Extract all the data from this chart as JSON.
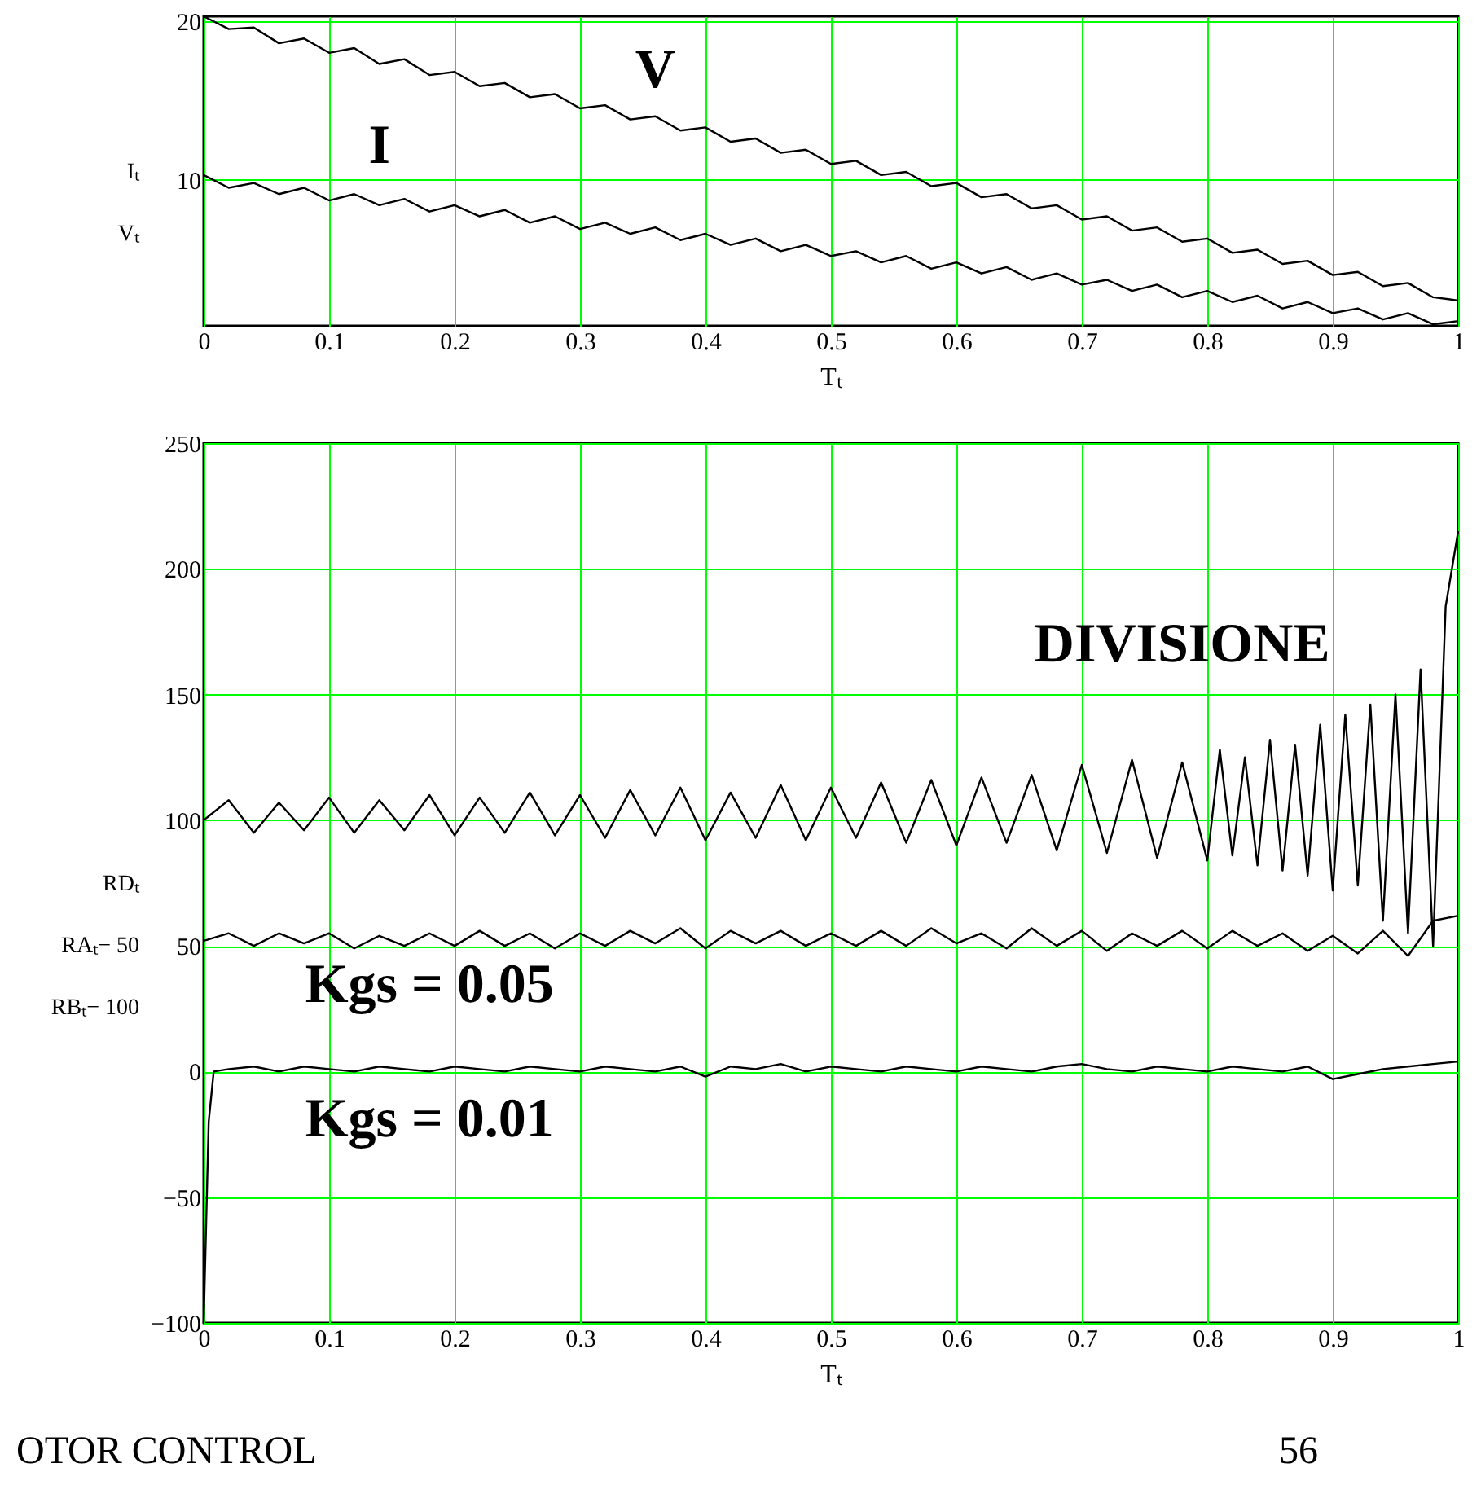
{
  "chart_data": [
    {
      "type": "line",
      "xlabel": "Tₜ",
      "ylabel": "Iₜ\nVₜ",
      "xlim": [
        0,
        1
      ],
      "ylim": [
        0.8,
        20.3
      ],
      "xticks": [
        0,
        0.1,
        0.2,
        0.3,
        0.4,
        0.5,
        0.6,
        0.7,
        0.8,
        0.9,
        1
      ],
      "yticks": [
        10,
        20
      ],
      "grid": true,
      "line_style": "solid",
      "series": [
        {
          "name": "V",
          "color": "#000000",
          "x": [
            0,
            0.02,
            0.04,
            0.06,
            0.08,
            0.1,
            0.12,
            0.14,
            0.16,
            0.18,
            0.2,
            0.22,
            0.24,
            0.26,
            0.28,
            0.3,
            0.32,
            0.34,
            0.36,
            0.38,
            0.4,
            0.42,
            0.44,
            0.46,
            0.48,
            0.5,
            0.52,
            0.54,
            0.56,
            0.58,
            0.6,
            0.62,
            0.64,
            0.66,
            0.68,
            0.7,
            0.72,
            0.74,
            0.76,
            0.78,
            0.8,
            0.82,
            0.84,
            0.86,
            0.88,
            0.9,
            0.92,
            0.94,
            0.96,
            0.98,
            1
          ],
          "values": [
            20.3,
            19.5,
            19.6,
            18.6,
            18.9,
            18.0,
            18.3,
            17.3,
            17.6,
            16.6,
            16.8,
            15.9,
            16.1,
            15.2,
            15.4,
            14.5,
            14.7,
            13.8,
            14.0,
            13.1,
            13.3,
            12.4,
            12.6,
            11.7,
            11.9,
            11.0,
            11.2,
            10.3,
            10.5,
            9.6,
            9.8,
            8.9,
            9.1,
            8.2,
            8.4,
            7.5,
            7.7,
            6.8,
            7.0,
            6.1,
            6.3,
            5.4,
            5.6,
            4.7,
            4.9,
            4.0,
            4.2,
            3.3,
            3.5,
            2.6,
            2.4
          ]
        },
        {
          "name": "I",
          "color": "#000000",
          "x": [
            0,
            0.02,
            0.04,
            0.06,
            0.08,
            0.1,
            0.12,
            0.14,
            0.16,
            0.18,
            0.2,
            0.22,
            0.24,
            0.26,
            0.28,
            0.3,
            0.32,
            0.34,
            0.36,
            0.38,
            0.4,
            0.42,
            0.44,
            0.46,
            0.48,
            0.5,
            0.52,
            0.54,
            0.56,
            0.58,
            0.6,
            0.62,
            0.64,
            0.66,
            0.68,
            0.7,
            0.72,
            0.74,
            0.76,
            0.78,
            0.8,
            0.82,
            0.84,
            0.86,
            0.88,
            0.9,
            0.92,
            0.94,
            0.96,
            0.98,
            1
          ],
          "values": [
            10.3,
            9.5,
            9.8,
            9.1,
            9.5,
            8.7,
            9.1,
            8.4,
            8.8,
            8.0,
            8.4,
            7.7,
            8.1,
            7.3,
            7.7,
            6.9,
            7.3,
            6.6,
            7.0,
            6.2,
            6.6,
            5.9,
            6.3,
            5.5,
            5.9,
            5.2,
            5.5,
            4.8,
            5.2,
            4.4,
            4.8,
            4.1,
            4.5,
            3.7,
            4.1,
            3.4,
            3.7,
            3.0,
            3.4,
            2.6,
            3.0,
            2.3,
            2.7,
            1.9,
            2.3,
            1.6,
            1.9,
            1.2,
            1.6,
            0.9,
            1.1
          ]
        }
      ]
    },
    {
      "type": "line",
      "xlabel": "Tₜ",
      "ylabel": "RDₜ\nRAₜ− 50\nRBₜ− 100",
      "xlim": [
        0,
        1
      ],
      "ylim": [
        -100,
        250
      ],
      "xticks": [
        0,
        0.1,
        0.2,
        0.3,
        0.4,
        0.5,
        0.6,
        0.7,
        0.8,
        0.9,
        1
      ],
      "yticks": [
        -100,
        -50,
        0,
        50,
        100,
        150,
        200,
        250
      ],
      "grid": true,
      "line_style": "solid",
      "annotations": [
        "OTOR  CONTROL",
        "56"
      ],
      "series": [
        {
          "name": "DIVISIONE",
          "color": "#000000",
          "x": [
            0,
            0.02,
            0.04,
            0.06,
            0.08,
            0.1,
            0.12,
            0.14,
            0.16,
            0.18,
            0.2,
            0.22,
            0.24,
            0.26,
            0.28,
            0.3,
            0.32,
            0.34,
            0.36,
            0.38,
            0.4,
            0.42,
            0.44,
            0.46,
            0.48,
            0.5,
            0.52,
            0.54,
            0.56,
            0.58,
            0.6,
            0.62,
            0.64,
            0.66,
            0.68,
            0.7,
            0.72,
            0.74,
            0.76,
            0.78,
            0.8,
            0.81,
            0.82,
            0.83,
            0.84,
            0.85,
            0.86,
            0.87,
            0.88,
            0.89,
            0.9,
            0.91,
            0.92,
            0.93,
            0.94,
            0.95,
            0.96,
            0.97,
            0.98,
            0.99,
            1
          ],
          "values": [
            100,
            108,
            95,
            107,
            96,
            109,
            95,
            108,
            96,
            110,
            94,
            109,
            95,
            111,
            94,
            110,
            93,
            112,
            94,
            113,
            92,
            111,
            93,
            114,
            92,
            113,
            93,
            115,
            91,
            116,
            90,
            117,
            91,
            118,
            88,
            122,
            87,
            124,
            85,
            123,
            84,
            128,
            86,
            125,
            82,
            132,
            80,
            130,
            78,
            138,
            72,
            142,
            74,
            146,
            60,
            150,
            55,
            160,
            50,
            185,
            215
          ]
        },
        {
          "name": "Kgs = 0.05",
          "color": "#000000",
          "x": [
            0,
            0.02,
            0.04,
            0.06,
            0.08,
            0.1,
            0.12,
            0.14,
            0.16,
            0.18,
            0.2,
            0.22,
            0.24,
            0.26,
            0.28,
            0.3,
            0.32,
            0.34,
            0.36,
            0.38,
            0.4,
            0.42,
            0.44,
            0.46,
            0.48,
            0.5,
            0.52,
            0.54,
            0.56,
            0.58,
            0.6,
            0.62,
            0.64,
            0.66,
            0.68,
            0.7,
            0.72,
            0.74,
            0.76,
            0.78,
            0.8,
            0.82,
            0.84,
            0.86,
            0.88,
            0.9,
            0.92,
            0.94,
            0.96,
            0.98,
            1
          ],
          "values": [
            52,
            55,
            50,
            55,
            51,
            55,
            49,
            54,
            50,
            55,
            50,
            56,
            50,
            55,
            49,
            55,
            50,
            56,
            51,
            57,
            49,
            56,
            51,
            56,
            50,
            55,
            50,
            56,
            50,
            57,
            51,
            55,
            49,
            57,
            50,
            56,
            48,
            55,
            50,
            56,
            49,
            56,
            50,
            55,
            48,
            54,
            47,
            56,
            46,
            60,
            62
          ]
        },
        {
          "name": "Kgs = 0.01",
          "color": "#000000",
          "x": [
            0,
            0.002,
            0.004,
            0.006,
            0.008,
            0.02,
            0.04,
            0.06,
            0.08,
            0.1,
            0.12,
            0.14,
            0.16,
            0.18,
            0.2,
            0.22,
            0.24,
            0.26,
            0.28,
            0.3,
            0.32,
            0.34,
            0.36,
            0.38,
            0.4,
            0.42,
            0.44,
            0.46,
            0.48,
            0.5,
            0.52,
            0.54,
            0.56,
            0.58,
            0.6,
            0.62,
            0.64,
            0.66,
            0.68,
            0.7,
            0.72,
            0.74,
            0.76,
            0.78,
            0.8,
            0.82,
            0.84,
            0.86,
            0.88,
            0.9,
            0.92,
            0.94,
            0.96,
            0.98,
            1
          ],
          "values": [
            -100,
            -60,
            -20,
            -10,
            0,
            1,
            2,
            0,
            2,
            1,
            0,
            2,
            1,
            0,
            2,
            1,
            0,
            2,
            1,
            0,
            2,
            1,
            0,
            2,
            -2,
            2,
            1,
            3,
            0,
            2,
            1,
            0,
            2,
            1,
            0,
            2,
            1,
            0,
            2,
            3,
            1,
            0,
            2,
            1,
            0,
            2,
            1,
            0,
            2,
            -3,
            -1,
            1,
            2,
            3,
            4
          ]
        }
      ]
    }
  ]
}
